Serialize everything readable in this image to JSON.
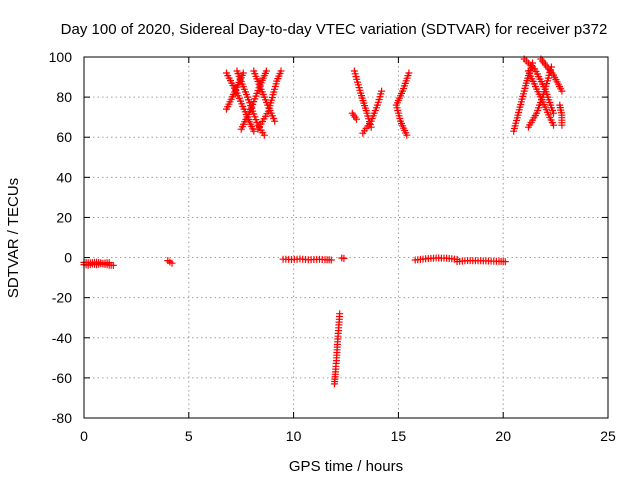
{
  "chart_data": {
    "type": "scatter",
    "title": "Day 100 of 2020, Sidereal Day-to-day VTEC variation (SDTVAR) for receiver p372",
    "xlabel": "GPS time / hours",
    "ylabel": "SDTVAR / TECUs",
    "xlim": [
      0,
      25
    ],
    "ylim": [
      -80,
      100
    ],
    "xticks": [
      "0",
      "5",
      "10",
      "15",
      "20",
      "25"
    ],
    "yticks": [
      "-80",
      "-60",
      "-40",
      "-20",
      "0",
      "20",
      "40",
      "60",
      "80",
      "100"
    ],
    "grid": true,
    "marker": "+",
    "colors": {
      "series": "#ff0000",
      "axis": "#000000",
      "grid": "#a0a0a0"
    },
    "series": [
      {
        "name": "SDTVAR",
        "segments": [
          [
            [
              0.0,
              -3.5
            ],
            [
              0.2,
              -3.8
            ],
            [
              0.4,
              -3.2
            ],
            [
              0.6,
              -3.6
            ],
            [
              0.8,
              -3.0
            ],
            [
              1.0,
              -3.4
            ],
            [
              1.2,
              -3.8
            ],
            [
              1.4,
              -3.9
            ]
          ],
          [
            [
              0.0,
              -2.4
            ],
            [
              0.3,
              -2.6
            ],
            [
              0.6,
              -2.3
            ],
            [
              0.9,
              -2.8
            ],
            [
              1.2,
              -2.5
            ]
          ],
          [
            [
              4.0,
              -1.5
            ],
            [
              4.1,
              -2.2
            ],
            [
              4.2,
              -2.8
            ]
          ],
          [
            [
              9.5,
              -0.8
            ],
            [
              9.9,
              -1.0
            ],
            [
              10.3,
              -0.7
            ],
            [
              10.7,
              -1.1
            ],
            [
              11.1,
              -0.9
            ],
            [
              11.5,
              -1.0
            ],
            [
              11.8,
              -1.2
            ]
          ],
          [
            [
              12.3,
              -0.2
            ],
            [
              12.4,
              -0.4
            ]
          ],
          [
            [
              12.2,
              -28.0
            ],
            [
              12.15,
              -35.0
            ],
            [
              12.1,
              -42.0
            ],
            [
              12.05,
              -50.0
            ],
            [
              12.0,
              -57.0
            ],
            [
              11.95,
              -63.0
            ]
          ],
          [
            [
              15.8,
              -1.2
            ],
            [
              16.3,
              -0.6
            ],
            [
              16.8,
              -0.2
            ],
            [
              17.3,
              -0.3
            ],
            [
              17.8,
              -0.9
            ]
          ],
          [
            [
              17.8,
              -2.0
            ],
            [
              18.3,
              -1.5
            ],
            [
              18.8,
              -1.6
            ],
            [
              19.3,
              -1.7
            ],
            [
              19.8,
              -1.9
            ],
            [
              20.1,
              -2.0
            ]
          ],
          [
            [
              6.8,
              92.0
            ],
            [
              7.3,
              82.0
            ],
            [
              7.8,
              70.0
            ],
            [
              8.1,
              63.0
            ]
          ],
          [
            [
              6.8,
              74.0
            ],
            [
              7.3,
              85.0
            ],
            [
              7.6,
              92.0
            ]
          ],
          [
            [
              7.3,
              93.0
            ],
            [
              7.8,
              80.0
            ],
            [
              8.3,
              66.0
            ],
            [
              8.6,
              61.0
            ]
          ],
          [
            [
              7.5,
              64.0
            ],
            [
              8.0,
              75.0
            ],
            [
              8.4,
              86.0
            ],
            [
              8.7,
              93.0
            ]
          ],
          [
            [
              8.1,
              93.0
            ],
            [
              8.6,
              80.0
            ],
            [
              9.1,
              68.0
            ]
          ],
          [
            [
              8.3,
              64.0
            ],
            [
              8.8,
              73.0
            ],
            [
              9.2,
              88.0
            ],
            [
              9.4,
              93.0
            ]
          ],
          [
            [
              12.9,
              93.0
            ],
            [
              13.2,
              82.0
            ],
            [
              13.5,
              72.0
            ],
            [
              13.7,
              65.0
            ]
          ],
          [
            [
              13.3,
              62.0
            ],
            [
              13.7,
              68.0
            ],
            [
              14.0,
              76.0
            ],
            [
              14.2,
              83.0
            ]
          ],
          [
            [
              12.8,
              72.0
            ],
            [
              13.0,
              69.0
            ]
          ],
          [
            [
              15.5,
              92.0
            ],
            [
              15.2,
              83.0
            ],
            [
              14.9,
              76.0
            ],
            [
              15.1,
              68.0
            ],
            [
              15.4,
              61.0
            ]
          ],
          [
            [
              21.2,
              93.0
            ],
            [
              21.6,
              84.0
            ],
            [
              22.0,
              75.0
            ],
            [
              22.4,
              66.0
            ]
          ],
          [
            [
              20.5,
              63.0
            ],
            [
              20.8,
              75.0
            ],
            [
              21.1,
              87.0
            ],
            [
              21.4,
              97.0
            ]
          ],
          [
            [
              21.0,
              99.0
            ],
            [
              21.5,
              94.0
            ],
            [
              22.0,
              84.0
            ],
            [
              22.4,
              72.0
            ]
          ],
          [
            [
              21.2,
              65.0
            ],
            [
              21.6,
              72.0
            ],
            [
              22.0,
              84.0
            ],
            [
              22.3,
              95.0
            ]
          ],
          [
            [
              21.8,
              99.0
            ],
            [
              22.1,
              95.0
            ],
            [
              22.4,
              91.0
            ],
            [
              22.8,
              83.0
            ]
          ],
          [
            [
              22.7,
              76.0
            ],
            [
              22.8,
              71.0
            ],
            [
              22.8,
              66.0
            ]
          ]
        ]
      }
    ]
  }
}
